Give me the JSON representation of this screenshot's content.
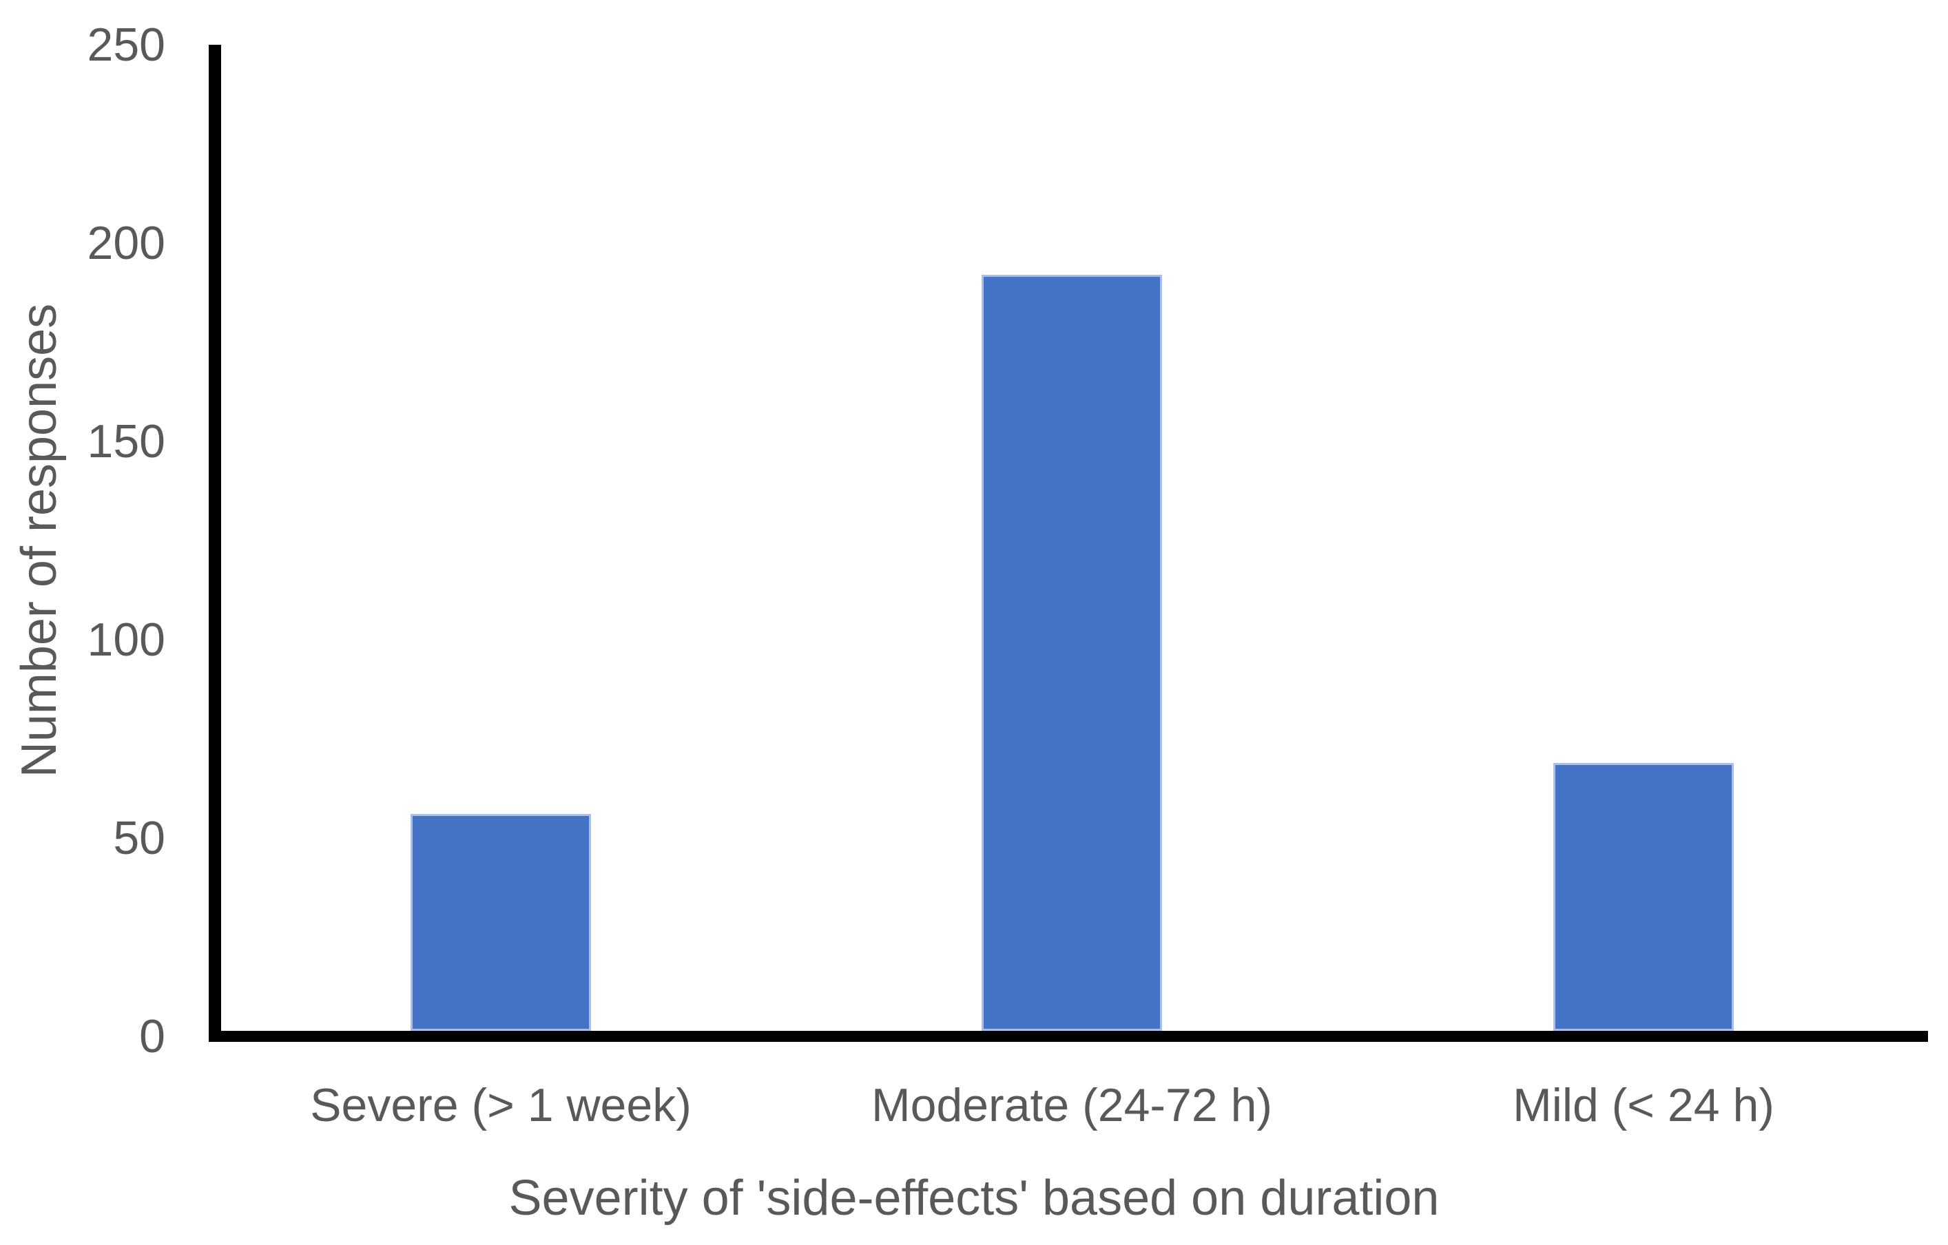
{
  "chart_data": {
    "type": "bar",
    "title": "",
    "categories": [
      "Severe (> 1 week)",
      "Moderate (24-72 h)",
      "Mild (< 24 h)"
    ],
    "values": [
      56,
      192,
      69
    ],
    "xlabel": "Severity of 'side-effects' based on duration",
    "ylabel": "Number of responses",
    "ylim": [
      0,
      250
    ],
    "y_ticks": [
      0,
      50,
      100,
      150,
      200,
      250
    ],
    "grid": false,
    "legend": "none",
    "colors": {
      "bar_fill": "#4472C4",
      "bar_border": "#A9BEE9",
      "axis_line": "#000000",
      "label_text": "#595959"
    }
  }
}
